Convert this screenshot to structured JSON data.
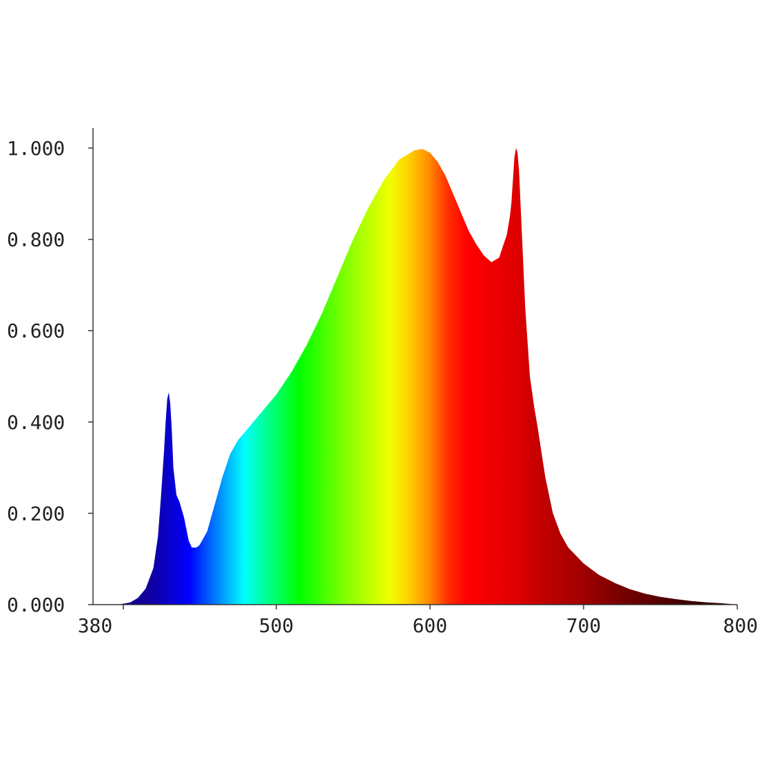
{
  "chart_data": {
    "type": "area",
    "title": "",
    "xlabel": "",
    "ylabel": "",
    "xlim": [
      380,
      800
    ],
    "ylim": [
      0,
      1.0
    ],
    "grid": false,
    "legend": "none",
    "fill": "spectral-colour-gradient",
    "x_ticks": [
      {
        "value": 380,
        "label": "380"
      },
      {
        "value": 500,
        "label": "500"
      },
      {
        "value": 600,
        "label": "600"
      },
      {
        "value": 700,
        "label": "700"
      },
      {
        "value": 800,
        "label": "800"
      }
    ],
    "y_ticks": [
      {
        "value": 0.0,
        "label": "0.000"
      },
      {
        "value": 0.2,
        "label": "0.200"
      },
      {
        "value": 0.4,
        "label": "0.400"
      },
      {
        "value": 0.6,
        "label": "0.600"
      },
      {
        "value": 0.8,
        "label": "0.800"
      },
      {
        "value": 1.0,
        "label": "1.000"
      }
    ],
    "series": [
      {
        "x": [
          397,
          405,
          410,
          415,
          420,
          423,
          425,
          427,
          428,
          429,
          430,
          431,
          432,
          433,
          435,
          437,
          440,
          443,
          445,
          448,
          450,
          455,
          460,
          465,
          470,
          475,
          480,
          485,
          490,
          500,
          510,
          520,
          530,
          540,
          550,
          560,
          570,
          580,
          590,
          595,
          600,
          605,
          610,
          615,
          620,
          625,
          630,
          635,
          640,
          645,
          648,
          650,
          652,
          653,
          654,
          655,
          656,
          657,
          658,
          660,
          662,
          665,
          668,
          670,
          675,
          680,
          685,
          690,
          700,
          710,
          720,
          730,
          740,
          750,
          760,
          770,
          780,
          790,
          800
        ],
        "y": [
          0.0,
          0.005,
          0.015,
          0.035,
          0.08,
          0.15,
          0.24,
          0.34,
          0.4,
          0.45,
          0.465,
          0.44,
          0.38,
          0.3,
          0.24,
          0.225,
          0.19,
          0.14,
          0.125,
          0.125,
          0.13,
          0.16,
          0.22,
          0.28,
          0.33,
          0.36,
          0.38,
          0.4,
          0.42,
          0.46,
          0.51,
          0.57,
          0.64,
          0.72,
          0.8,
          0.87,
          0.93,
          0.975,
          0.995,
          0.998,
          0.99,
          0.97,
          0.94,
          0.9,
          0.86,
          0.82,
          0.79,
          0.765,
          0.75,
          0.76,
          0.79,
          0.81,
          0.85,
          0.88,
          0.93,
          0.98,
          1.0,
          0.99,
          0.95,
          0.8,
          0.65,
          0.5,
          0.43,
          0.39,
          0.28,
          0.2,
          0.155,
          0.125,
          0.09,
          0.065,
          0.048,
          0.034,
          0.024,
          0.017,
          0.012,
          0.008,
          0.005,
          0.003,
          0.0
        ]
      }
    ]
  }
}
